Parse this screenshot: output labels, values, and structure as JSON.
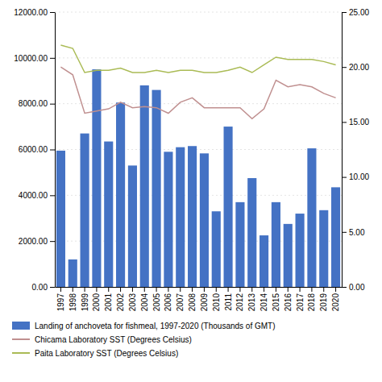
{
  "chart_data": {
    "type": "bar",
    "categories": [
      "1997",
      "1998",
      "1999",
      "2000",
      "2001",
      "2002",
      "2003",
      "2004",
      "2005",
      "2006",
      "2007",
      "2008",
      "2009",
      "2010",
      "2011",
      "2012",
      "2013",
      "2014",
      "2015",
      "2016",
      "2017",
      "2018",
      "2019",
      "2020"
    ],
    "series": [
      {
        "name": "Landing of anchoveta for fishmeal, 1997-2020 (Thousands of GMT)",
        "type": "bar",
        "color": "#4472C4",
        "values": [
          5950,
          1200,
          6700,
          9500,
          6350,
          8050,
          5300,
          8800,
          8600,
          5900,
          6100,
          6150,
          5830,
          3300,
          7000,
          3700,
          4750,
          2250,
          3700,
          2750,
          3200,
          6050,
          3350,
          4350
        ]
      },
      {
        "name": "Chicama Laboratory SST (Degrees Celsius)",
        "type": "line",
        "axis": "y2",
        "color": "#C09090",
        "values": [
          20.0,
          19.3,
          15.8,
          16.0,
          16.2,
          16.8,
          16.3,
          16.4,
          16.3,
          15.8,
          16.8,
          17.2,
          16.3,
          16.3,
          16.3,
          16.3,
          15.3,
          16.2,
          18.8,
          18.2,
          18.4,
          18.2,
          17.6,
          17.2
        ]
      },
      {
        "name": "Paita Laboratory SST (Degrees Celsius)",
        "type": "line",
        "axis": "y2",
        "color": "#AABB55",
        "values": [
          22.0,
          21.7,
          19.5,
          19.7,
          19.7,
          19.9,
          19.5,
          19.5,
          19.7,
          19.5,
          19.7,
          19.7,
          19.5,
          19.5,
          19.7,
          20.0,
          19.5,
          20.2,
          20.9,
          20.7,
          20.7,
          20.7,
          20.5,
          20.2
        ]
      }
    ],
    "ylim": [
      0,
      12000
    ],
    "yticks": [
      {
        "value": 0,
        "label": "0.00"
      },
      {
        "value": 2000,
        "label": "2000.00"
      },
      {
        "value": 4000,
        "label": "4000.00"
      },
      {
        "value": 6000,
        "label": "6000.00"
      },
      {
        "value": 8000,
        "label": "8000.00"
      },
      {
        "value": 10000,
        "label": "10000.00"
      },
      {
        "value": 12000,
        "label": "12000.00"
      }
    ],
    "y2lim": [
      0,
      25
    ],
    "y2ticks": [
      {
        "value": 0,
        "label": "0.00"
      },
      {
        "value": 5,
        "label": "5.00"
      },
      {
        "value": 10,
        "label": "10.00"
      },
      {
        "value": 15,
        "label": "15.00"
      },
      {
        "value": 20,
        "label": "20.00"
      },
      {
        "value": 25,
        "label": "25.00"
      }
    ],
    "grid": true,
    "legend": "bottom"
  }
}
